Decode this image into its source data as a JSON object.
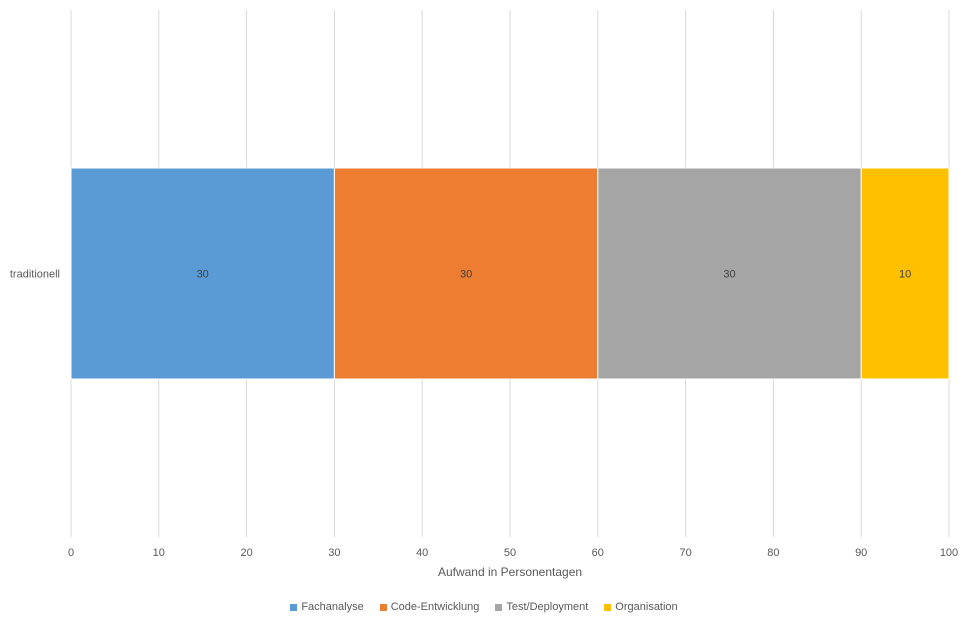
{
  "chart_data": {
    "type": "bar",
    "orientation": "horizontal",
    "stacked": true,
    "categories": [
      "traditionell"
    ],
    "series": [
      {
        "name": "Fachanalyse",
        "values": [
          30
        ],
        "color": "#5B9BD5"
      },
      {
        "name": "Code-Entwicklung",
        "values": [
          30
        ],
        "color": "#ED7D31"
      },
      {
        "name": "Test/Deployment",
        "values": [
          30
        ],
        "color": "#A5A5A5"
      },
      {
        "name": "Organisation",
        "values": [
          10
        ],
        "color": "#FFC000"
      }
    ],
    "title": "",
    "xlabel": "Aufwand in Personentagen",
    "ylabel": "",
    "xlim": [
      0,
      100
    ],
    "xticks": [
      0,
      10,
      20,
      30,
      40,
      50,
      60,
      70,
      80,
      90,
      100
    ],
    "grid": true,
    "legend_position": "bottom"
  }
}
